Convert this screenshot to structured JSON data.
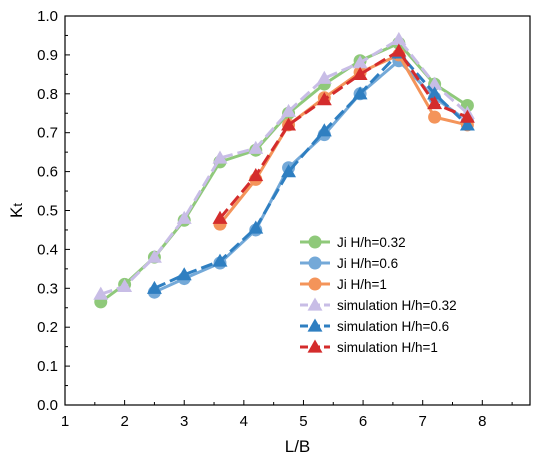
{
  "chart_data": {
    "type": "line",
    "xlabel": "L/B",
    "ylabel_main": "K",
    "ylabel_sub": "t",
    "xlim": [
      1,
      8.8
    ],
    "ylim": [
      0,
      1.0
    ],
    "xticks": [
      "1",
      "2",
      "3",
      "4",
      "5",
      "6",
      "7",
      "8"
    ],
    "yticks": [
      "0.0",
      "0.1",
      "0.2",
      "0.3",
      "0.4",
      "0.5",
      "0.6",
      "0.7",
      "0.8",
      "0.9",
      "1.0"
    ],
    "grid": false,
    "legend_position": "center-right",
    "series": [
      {
        "name": "Ji H/h=0.32",
        "color": "#8fc97a",
        "marker": "circle",
        "dash": "solid",
        "x": [
          1.6,
          2.0,
          2.5,
          3.0,
          3.6,
          4.2,
          4.75,
          5.35,
          5.95,
          6.6,
          7.2,
          7.75
        ],
        "y": [
          0.265,
          0.31,
          0.38,
          0.475,
          0.625,
          0.655,
          0.75,
          0.825,
          0.885,
          0.93,
          0.825,
          0.77
        ]
      },
      {
        "name": "Ji H/h=0.6",
        "color": "#74a9d8",
        "marker": "circle",
        "dash": "solid",
        "x": [
          2.5,
          3.0,
          3.6,
          4.2,
          4.75,
          5.35,
          5.95,
          6.6,
          7.2,
          7.75
        ],
        "y": [
          0.29,
          0.325,
          0.365,
          0.45,
          0.61,
          0.695,
          0.8,
          0.885,
          0.79,
          0.73
        ]
      },
      {
        "name": "Ji H/h=1",
        "color": "#f4945a",
        "marker": "circle",
        "dash": "solid",
        "x": [
          3.6,
          4.2,
          4.75,
          5.35,
          5.95,
          6.6,
          7.2,
          7.75
        ],
        "y": [
          0.465,
          0.58,
          0.72,
          0.79,
          0.855,
          0.9,
          0.74,
          0.72
        ]
      },
      {
        "name": "simulation H/h=0.32",
        "color": "#c8bde6",
        "marker": "triangle",
        "dash": "dashed",
        "x": [
          1.6,
          2.0,
          2.5,
          3.0,
          3.6,
          4.2,
          4.75,
          5.35,
          5.95,
          6.6,
          7.2,
          7.75
        ],
        "y": [
          0.285,
          0.305,
          0.38,
          0.48,
          0.635,
          0.66,
          0.755,
          0.84,
          0.88,
          0.94,
          0.825,
          0.75
        ]
      },
      {
        "name": "simulation H/h=0.6",
        "color": "#2f7fc1",
        "marker": "triangle",
        "dash": "dashed",
        "x": [
          2.5,
          3.0,
          3.6,
          4.2,
          4.75,
          5.35,
          5.95,
          6.6,
          7.2,
          7.75
        ],
        "y": [
          0.3,
          0.335,
          0.37,
          0.455,
          0.6,
          0.705,
          0.8,
          0.905,
          0.8,
          0.72
        ]
      },
      {
        "name": "simulation H/h=1",
        "color": "#d42c2c",
        "marker": "triangle",
        "dash": "dashed",
        "x": [
          3.6,
          4.2,
          4.75,
          5.35,
          5.95,
          6.6,
          7.2,
          7.75
        ],
        "y": [
          0.48,
          0.59,
          0.72,
          0.785,
          0.85,
          0.91,
          0.775,
          0.74
        ]
      }
    ]
  }
}
